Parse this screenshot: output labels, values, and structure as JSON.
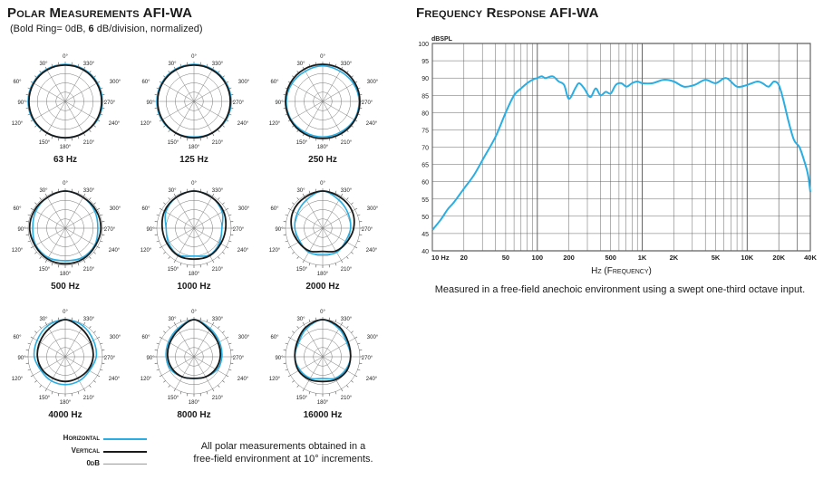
{
  "polar": {
    "title": "Polar Measurements AFI-WA",
    "subtitle_prefix": "(Bold Ring= 0dB, ",
    "subtitle_bold": "6",
    "subtitle_suffix": " dB/division, normalized)",
    "angle_labels": [
      "0°",
      "30°",
      "330°",
      "60°",
      "300°",
      "90°",
      "270°",
      "120°",
      "240°",
      "150°",
      "210°",
      "180°"
    ],
    "note_line1": "All polar measurements obtained in a",
    "note_line2": "free-field environment at 10° increments.",
    "legend": [
      {
        "label": "Horizontal",
        "color": "#29aee3"
      },
      {
        "label": "Vertical",
        "color": "#1a1a1a"
      },
      {
        "label": "0dB",
        "color": "#999999"
      }
    ]
  },
  "frequency": {
    "title": "Frequency Response AFI-WA",
    "caption": "Measured in a free-field anechoic environment using a swept one-third octave input.",
    "line_color": "#29aee3"
  },
  "chart_data": [
    {
      "type": "line",
      "title": "Polar Measurements AFI-WA",
      "polar": true,
      "angle_unit": "degrees",
      "radial_unit": "dB (6 dB/division, 0 dB outer bold ring)",
      "charts": [
        {
          "label": "63 Hz",
          "horizontal": [
            [
              0,
              0
            ],
            [
              30,
              0
            ],
            [
              60,
              0
            ],
            [
              90,
              0
            ],
            [
              120,
              0
            ],
            [
              150,
              -0.5
            ],
            [
              180,
              -0.5
            ],
            [
              210,
              -0.5
            ],
            [
              240,
              0
            ],
            [
              270,
              0
            ],
            [
              300,
              0
            ],
            [
              330,
              0
            ]
          ],
          "vertical": [
            [
              0,
              -0.5
            ],
            [
              30,
              -0.5
            ],
            [
              60,
              -0.5
            ],
            [
              90,
              -0.5
            ],
            [
              120,
              -0.5
            ],
            [
              150,
              -0.5
            ],
            [
              180,
              -0.5
            ],
            [
              210,
              -0.5
            ],
            [
              240,
              -0.5
            ],
            [
              270,
              -0.5
            ],
            [
              300,
              -0.5
            ],
            [
              330,
              -0.5
            ]
          ]
        },
        {
          "label": "125 Hz",
          "horizontal": [
            [
              0,
              0
            ],
            [
              30,
              0
            ],
            [
              60,
              0
            ],
            [
              90,
              0
            ],
            [
              120,
              0
            ],
            [
              150,
              -0.5
            ],
            [
              180,
              -1
            ],
            [
              210,
              -0.5
            ],
            [
              240,
              0
            ],
            [
              270,
              0
            ],
            [
              300,
              0
            ],
            [
              330,
              0
            ]
          ],
          "vertical": [
            [
              0,
              -0.5
            ],
            [
              30,
              -0.5
            ],
            [
              60,
              -0.5
            ],
            [
              90,
              -0.5
            ],
            [
              120,
              -0.5
            ],
            [
              150,
              -0.5
            ],
            [
              180,
              -0.5
            ],
            [
              210,
              -0.5
            ],
            [
              240,
              -0.5
            ],
            [
              270,
              -0.5
            ],
            [
              300,
              -0.5
            ],
            [
              330,
              -0.5
            ]
          ]
        },
        {
          "label": "250 Hz",
          "horizontal": [
            [
              0,
              -1
            ],
            [
              30,
              -1.5
            ],
            [
              60,
              -1
            ],
            [
              90,
              -0.5
            ],
            [
              120,
              -0.5
            ],
            [
              150,
              -1
            ],
            [
              180,
              -1
            ],
            [
              210,
              -1
            ],
            [
              240,
              -0.5
            ],
            [
              270,
              -0.5
            ],
            [
              300,
              -1
            ],
            [
              330,
              -1.5
            ]
          ],
          "vertical": [
            [
              0,
              0
            ],
            [
              30,
              0
            ],
            [
              60,
              0
            ],
            [
              90,
              0
            ],
            [
              120,
              0
            ],
            [
              150,
              0
            ],
            [
              180,
              0
            ],
            [
              210,
              0
            ],
            [
              240,
              0
            ],
            [
              270,
              0
            ],
            [
              300,
              0
            ],
            [
              330,
              0
            ]
          ]
        },
        {
          "label": "500 Hz",
          "horizontal": [
            [
              0,
              0
            ],
            [
              30,
              -1
            ],
            [
              60,
              -2
            ],
            [
              90,
              -3
            ],
            [
              120,
              -2
            ],
            [
              150,
              -2
            ],
            [
              180,
              -3
            ],
            [
              210,
              -2
            ],
            [
              240,
              -2
            ],
            [
              270,
              -3
            ],
            [
              300,
              -2
            ],
            [
              330,
              -1
            ]
          ],
          "vertical": [
            [
              0,
              0
            ],
            [
              30,
              -1
            ],
            [
              60,
              -1
            ],
            [
              90,
              -1
            ],
            [
              120,
              -1.5
            ],
            [
              150,
              -1
            ],
            [
              180,
              -1
            ],
            [
              210,
              -1
            ],
            [
              240,
              -1.5
            ],
            [
              270,
              -1
            ],
            [
              300,
              -1
            ],
            [
              330,
              -1
            ]
          ]
        },
        {
          "label": "1000 Hz",
          "horizontal": [
            [
              0,
              0
            ],
            [
              30,
              -1
            ],
            [
              60,
              -3
            ],
            [
              90,
              -6
            ],
            [
              120,
              -5
            ],
            [
              150,
              -4
            ],
            [
              180,
              -6
            ],
            [
              210,
              -4
            ],
            [
              240,
              -5
            ],
            [
              270,
              -6
            ],
            [
              300,
              -3
            ],
            [
              330,
              -1
            ]
          ],
          "vertical": [
            [
              0,
              0
            ],
            [
              30,
              -1
            ],
            [
              60,
              -2
            ],
            [
              90,
              -3.5
            ],
            [
              120,
              -4
            ],
            [
              150,
              -3.5
            ],
            [
              180,
              -4
            ],
            [
              210,
              -3.5
            ],
            [
              240,
              -4
            ],
            [
              270,
              -3.5
            ],
            [
              300,
              -2
            ],
            [
              330,
              -1
            ]
          ]
        },
        {
          "label": "2000 Hz",
          "horizontal": [
            [
              0,
              0
            ],
            [
              30,
              -3
            ],
            [
              60,
              -5
            ],
            [
              90,
              -6
            ],
            [
              120,
              -7
            ],
            [
              150,
              -6
            ],
            [
              180,
              -7
            ],
            [
              210,
              -6
            ],
            [
              240,
              -7
            ],
            [
              270,
              -6
            ],
            [
              300,
              -5
            ],
            [
              330,
              -3
            ]
          ],
          "vertical": [
            [
              0,
              0
            ],
            [
              30,
              -1
            ],
            [
              60,
              -2
            ],
            [
              90,
              -4
            ],
            [
              120,
              -6
            ],
            [
              150,
              -7
            ],
            [
              180,
              -9
            ],
            [
              210,
              -7
            ],
            [
              240,
              -6
            ],
            [
              270,
              -4
            ],
            [
              300,
              -2
            ],
            [
              330,
              -1
            ]
          ]
        },
        {
          "label": "4000 Hz",
          "horizontal": [
            [
              0,
              0
            ],
            [
              30,
              -1
            ],
            [
              60,
              -3
            ],
            [
              90,
              -4
            ],
            [
              120,
              -6
            ],
            [
              150,
              -6
            ],
            [
              180,
              -6
            ],
            [
              210,
              -6
            ],
            [
              240,
              -6
            ],
            [
              270,
              -4
            ],
            [
              300,
              -3
            ],
            [
              330,
              -1
            ]
          ],
          "vertical": [
            [
              0,
              0
            ],
            [
              30,
              -3
            ],
            [
              60,
              -5
            ],
            [
              90,
              -6
            ],
            [
              120,
              -7
            ],
            [
              150,
              -8
            ],
            [
              180,
              -8
            ],
            [
              210,
              -8
            ],
            [
              240,
              -7
            ],
            [
              270,
              -6
            ],
            [
              300,
              -5
            ],
            [
              330,
              -3
            ]
          ]
        },
        {
          "label": "8000 Hz",
          "horizontal": [
            [
              0,
              0
            ],
            [
              30,
              -3
            ],
            [
              60,
              -5
            ],
            [
              90,
              -6
            ],
            [
              120,
              -7
            ],
            [
              150,
              -9
            ],
            [
              180,
              -10
            ],
            [
              210,
              -9
            ],
            [
              240,
              -7
            ],
            [
              270,
              -6
            ],
            [
              300,
              -5
            ],
            [
              330,
              -3
            ]
          ],
          "vertical": [
            [
              0,
              0
            ],
            [
              30,
              -4
            ],
            [
              60,
              -6
            ],
            [
              90,
              -7
            ],
            [
              120,
              -8
            ],
            [
              150,
              -9
            ],
            [
              180,
              -10
            ],
            [
              210,
              -9
            ],
            [
              240,
              -8
            ],
            [
              270,
              -7
            ],
            [
              300,
              -6
            ],
            [
              330,
              -4
            ]
          ]
        },
        {
          "label": "16000 Hz",
          "horizontal": [
            [
              0,
              0
            ],
            [
              30,
              -3
            ],
            [
              60,
              -6
            ],
            [
              90,
              -6
            ],
            [
              120,
              -7
            ],
            [
              150,
              -8
            ],
            [
              180,
              -10
            ],
            [
              210,
              -8
            ],
            [
              240,
              -7
            ],
            [
              270,
              -6
            ],
            [
              300,
              -6
            ],
            [
              330,
              -3
            ]
          ],
          "vertical": [
            [
              0,
              0
            ],
            [
              30,
              -2
            ],
            [
              60,
              -5
            ],
            [
              90,
              -6
            ],
            [
              120,
              -6
            ],
            [
              150,
              -7
            ],
            [
              180,
              -8
            ],
            [
              210,
              -7
            ],
            [
              240,
              -6
            ],
            [
              270,
              -6
            ],
            [
              300,
              -5
            ],
            [
              330,
              -2
            ]
          ]
        }
      ]
    },
    {
      "type": "line",
      "title": "Frequency Response AFI-WA",
      "xlabel": "Hz (Frequency)",
      "ylabel": "dBSPL",
      "xscale": "log",
      "xlim": [
        10,
        40000
      ],
      "ylim": [
        40,
        100
      ],
      "grid": true,
      "xticks": [
        {
          "value": 10,
          "label": "10 Hz"
        },
        {
          "value": 20,
          "label": "20"
        },
        {
          "value": 50,
          "label": "50"
        },
        {
          "value": 100,
          "label": "100"
        },
        {
          "value": 200,
          "label": "200"
        },
        {
          "value": 500,
          "label": "500"
        },
        {
          "value": 1000,
          "label": "1K"
        },
        {
          "value": 2000,
          "label": "2K"
        },
        {
          "value": 5000,
          "label": "5K"
        },
        {
          "value": 10000,
          "label": "10K"
        },
        {
          "value": 20000,
          "label": "20K"
        },
        {
          "value": 40000,
          "label": "40K"
        }
      ],
      "yticks": [
        40,
        45,
        50,
        55,
        60,
        65,
        70,
        75,
        80,
        85,
        90,
        95,
        100
      ],
      "x": [
        10,
        12,
        14,
        16,
        20,
        25,
        31,
        40,
        50,
        60,
        70,
        80,
        90,
        100,
        110,
        120,
        140,
        160,
        180,
        200,
        230,
        250,
        280,
        320,
        360,
        400,
        450,
        500,
        560,
        630,
        710,
        800,
        900,
        1000,
        1250,
        1600,
        2000,
        2500,
        3150,
        4000,
        5000,
        6300,
        8000,
        10000,
        12500,
        14000,
        16000,
        18000,
        20000,
        22000,
        25000,
        28000,
        31500,
        35000,
        38000,
        40000
      ],
      "y": [
        46,
        49,
        52,
        54,
        58,
        62,
        67,
        73,
        80,
        85,
        87,
        88.5,
        89.5,
        90,
        90.5,
        90,
        90.5,
        89,
        88,
        84,
        87,
        88.5,
        87,
        84.5,
        87,
        85,
        86,
        85.5,
        88,
        88.5,
        87.5,
        88.5,
        89,
        88.5,
        88.5,
        89.5,
        89,
        87.5,
        88,
        89.5,
        88.5,
        90,
        87.5,
        88,
        89,
        88.5,
        87.5,
        89,
        88,
        84,
        77,
        72,
        70,
        66,
        62,
        57
      ],
      "series": [
        {
          "name": "",
          "values": "see x/y"
        }
      ]
    }
  ]
}
